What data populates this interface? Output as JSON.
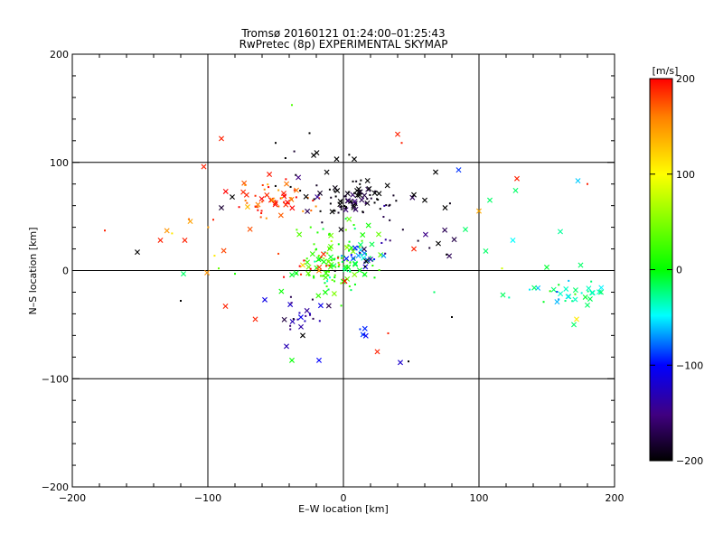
{
  "chart_data": {
    "type": "scatter",
    "title": "Tromsø 20160121 01:24:00–01:25:43",
    "subtitle": "RwPretec (8p) EXPERIMENTAL SKYMAP",
    "xlabel": "E–W location [km]",
    "ylabel": "N–S location [km]",
    "xlim": [
      -200,
      200
    ],
    "ylim": [
      -200,
      200
    ],
    "xticks": [
      "−200",
      "−100",
      "0",
      "100",
      "200"
    ],
    "yticks": [
      "−200",
      "−100",
      "0",
      "100",
      "200"
    ],
    "grid": true,
    "colorbar": {
      "label": "[m/s]",
      "range": [
        -200,
        200
      ],
      "ticks": [
        "200",
        "100",
        "0",
        "−100",
        "−200"
      ],
      "colormap": "rainbow (black → purple → blue → cyan → green → yellow → orange → red)"
    },
    "marker_types": [
      "x (cross)",
      "dot"
    ],
    "clusters": [
      {
        "center": [
          -55,
          68
        ],
        "spread": [
          14,
          10
        ],
        "velocity": 185,
        "count": 60
      },
      {
        "center": [
          5,
          65
        ],
        "spread": [
          14,
          7
        ],
        "velocity": -190,
        "count": 70
      },
      {
        "center": [
          -15,
          75
        ],
        "spread": [
          25,
          22
        ],
        "velocity": -200,
        "count": 25
      },
      {
        "center": [
          -5,
          10
        ],
        "spread": [
          14,
          16
        ],
        "velocity": 15,
        "count": 130
      },
      {
        "center": [
          15,
          15
        ],
        "spread": [
          7,
          7
        ],
        "velocity": -95,
        "count": 22
      },
      {
        "center": [
          -28,
          -40
        ],
        "spread": [
          9,
          9
        ],
        "velocity": -150,
        "count": 22
      },
      {
        "center": [
          15,
          -55
        ],
        "spread": [
          4,
          4
        ],
        "velocity": -110,
        "count": 6
      },
      {
        "center": [
          165,
          -20
        ],
        "spread": [
          18,
          5
        ],
        "velocity": -30,
        "count": 32
      },
      {
        "center": [
          -20,
          5
        ],
        "spread": [
          12,
          9
        ],
        "velocity": 190,
        "count": 14
      },
      {
        "center": [
          55,
          40
        ],
        "spread": [
          30,
          22
        ],
        "velocity": -180,
        "count": 18
      },
      {
        "center": [
          -80,
          30
        ],
        "spread": [
          40,
          25
        ],
        "velocity": 150,
        "count": 10
      }
    ],
    "points": [
      {
        "x": -90,
        "y": 122,
        "v": 190,
        "m": "x"
      },
      {
        "x": -103,
        "y": 96,
        "v": 190,
        "m": "x"
      },
      {
        "x": -152,
        "y": 17,
        "v": -200,
        "m": "x"
      },
      {
        "x": -135,
        "y": 28,
        "v": 190,
        "m": "x"
      },
      {
        "x": -117,
        "y": 28,
        "v": 190,
        "m": "x"
      },
      {
        "x": -176,
        "y": 37,
        "v": 190,
        "m": "."
      },
      {
        "x": -118,
        "y": -3,
        "v": -20,
        "m": "x"
      },
      {
        "x": -82,
        "y": 68,
        "v": -200,
        "m": "x"
      },
      {
        "x": -90,
        "y": 58,
        "v": -180,
        "m": "x"
      },
      {
        "x": -87,
        "y": -33,
        "v": 190,
        "m": "x"
      },
      {
        "x": -96,
        "y": 47,
        "v": 190,
        "m": "."
      },
      {
        "x": -92,
        "y": 2,
        "v": 40,
        "m": "."
      },
      {
        "x": -80,
        "y": -3,
        "v": 10,
        "m": "."
      },
      {
        "x": -65,
        "y": -45,
        "v": 190,
        "m": "x"
      },
      {
        "x": -38,
        "y": 153,
        "v": 30,
        "m": "."
      },
      {
        "x": -58,
        "y": -27,
        "v": -110,
        "m": "x"
      },
      {
        "x": -42,
        "y": -70,
        "v": -130,
        "m": "x"
      },
      {
        "x": -38,
        "y": -83,
        "v": 0,
        "m": "x"
      },
      {
        "x": -30,
        "y": -60,
        "v": -200,
        "m": "x"
      },
      {
        "x": -18,
        "y": -83,
        "v": -100,
        "m": "x"
      },
      {
        "x": 25,
        "y": -75,
        "v": 190,
        "m": "x"
      },
      {
        "x": 42,
        "y": -85,
        "v": -120,
        "m": "x"
      },
      {
        "x": 48,
        "y": -84,
        "v": -200,
        "m": "."
      },
      {
        "x": 40,
        "y": 126,
        "v": 190,
        "m": "x"
      },
      {
        "x": 43,
        "y": 118,
        "v": 190,
        "m": "."
      },
      {
        "x": 68,
        "y": 91,
        "v": -200,
        "m": "x"
      },
      {
        "x": 85,
        "y": 93,
        "v": -90,
        "m": "x"
      },
      {
        "x": 100,
        "y": 55,
        "v": 140,
        "m": "x"
      },
      {
        "x": 108,
        "y": 65,
        "v": -20,
        "m": "x"
      },
      {
        "x": 127,
        "y": 74,
        "v": -20,
        "m": "x"
      },
      {
        "x": 128,
        "y": 85,
        "v": 190,
        "m": "x"
      },
      {
        "x": 173,
        "y": 83,
        "v": -60,
        "m": "x"
      },
      {
        "x": 180,
        "y": 80,
        "v": 190,
        "m": "."
      },
      {
        "x": 105,
        "y": 18,
        "v": -20,
        "m": "x"
      },
      {
        "x": 90,
        "y": 38,
        "v": -20,
        "m": "x"
      },
      {
        "x": 117,
        "y": 2,
        "v": 80,
        "m": "."
      },
      {
        "x": 150,
        "y": 3,
        "v": -10,
        "m": "x"
      },
      {
        "x": 160,
        "y": 36,
        "v": -30,
        "m": "x"
      },
      {
        "x": 125,
        "y": 28,
        "v": -50,
        "m": "x"
      },
      {
        "x": 175,
        "y": 5,
        "v": -20,
        "m": "x"
      },
      {
        "x": 67,
        "y": -20,
        "v": -20,
        "m": "."
      },
      {
        "x": 80,
        "y": -43,
        "v": -200,
        "m": "."
      },
      {
        "x": 190,
        "y": -20,
        "v": -20,
        "m": "x"
      },
      {
        "x": 180,
        "y": -32,
        "v": -20,
        "m": "x"
      },
      {
        "x": 170,
        "y": -50,
        "v": -20,
        "m": "x"
      },
      {
        "x": 172,
        "y": -45,
        "v": 110,
        "m": "x"
      },
      {
        "x": 33,
        "y": -58,
        "v": 190,
        "m": "."
      },
      {
        "x": 52,
        "y": 20,
        "v": 190,
        "m": "x"
      },
      {
        "x": 70,
        "y": 25,
        "v": -200,
        "m": "x"
      },
      {
        "x": 75,
        "y": 58,
        "v": -200,
        "m": "x"
      },
      {
        "x": 60,
        "y": 65,
        "v": -200,
        "m": "x"
      },
      {
        "x": 52,
        "y": 70,
        "v": -200,
        "m": "x"
      },
      {
        "x": -120,
        "y": -28,
        "v": -200,
        "m": "."
      },
      {
        "x": -30,
        "y": 5,
        "v": 120,
        "m": "x"
      },
      {
        "x": -5,
        "y": 103,
        "v": -200,
        "m": "x"
      },
      {
        "x": 8,
        "y": 103,
        "v": -200,
        "m": "x"
      },
      {
        "x": -50,
        "y": 118,
        "v": -200,
        "m": "."
      },
      {
        "x": -25,
        "y": 127,
        "v": -200,
        "m": "."
      }
    ]
  }
}
